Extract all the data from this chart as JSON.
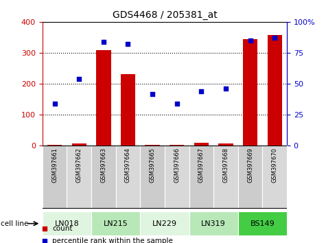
{
  "title": "GDS4468 / 205381_at",
  "samples": [
    "GSM397661",
    "GSM397662",
    "GSM397663",
    "GSM397664",
    "GSM397665",
    "GSM397666",
    "GSM397667",
    "GSM397668",
    "GSM397669",
    "GSM397670"
  ],
  "bar_values": [
    2,
    8,
    308,
    232,
    3,
    2,
    10,
    8,
    345,
    358
  ],
  "percentile_values": [
    34,
    54,
    84,
    82,
    42,
    34,
    44,
    46,
    85,
    87
  ],
  "bar_color": "#cc0000",
  "scatter_color": "#0000cc",
  "left_ylim": [
    0,
    400
  ],
  "right_ylim": [
    0,
    100
  ],
  "left_yticks": [
    0,
    100,
    200,
    300,
    400
  ],
  "right_yticks": [
    0,
    25,
    50,
    75,
    100
  ],
  "right_yticklabels": [
    "0",
    "25",
    "50",
    "75",
    "100%"
  ],
  "cell_lines": [
    {
      "label": "LN018",
      "samples": [
        0,
        1
      ],
      "color": "#e0f5e0"
    },
    {
      "label": "LN215",
      "samples": [
        2,
        3
      ],
      "color": "#b8e8b8"
    },
    {
      "label": "LN229",
      "samples": [
        4,
        5
      ],
      "color": "#e0f5e0"
    },
    {
      "label": "LN319",
      "samples": [
        6,
        7
      ],
      "color": "#b8e8b8"
    },
    {
      "label": "BS149",
      "samples": [
        8,
        9
      ],
      "color": "#44cc44"
    }
  ],
  "legend_count_color": "#cc0000",
  "legend_scatter_color": "#0000cc",
  "legend_count_label": "count",
  "legend_scatter_label": "percentile rank within the sample",
  "cell_line_label": "cell line",
  "plot_bg_color": "#ffffff",
  "outer_bg_color": "#ffffff"
}
